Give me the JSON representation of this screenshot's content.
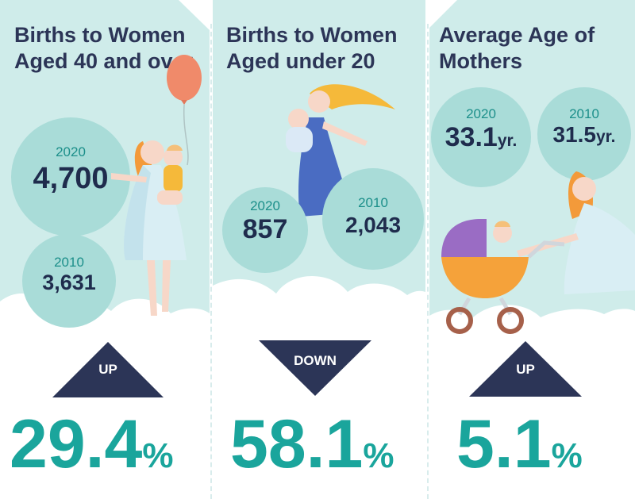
{
  "colors": {
    "panel_bg": "#cfecea",
    "bubble": "#a9dcd8",
    "dark_navy": "#2c3557",
    "teal": "#1aa59c",
    "cloud": "#ffffff"
  },
  "panels": [
    {
      "title_prefix": "Births to Women Aged ",
      "title_bold": "40 and over",
      "title_suffix": "",
      "bubbles": [
        {
          "year": "2020",
          "value": "4,700"
        },
        {
          "year": "2010",
          "value": "3,631"
        }
      ],
      "direction": "UP",
      "change_value": "29.4",
      "change_symbol": "%",
      "illustration": "woman-with-balloon-and-child-icon"
    },
    {
      "title_prefix": "Births to Women Aged ",
      "title_bold": "under 20",
      "title_suffix": "",
      "bubbles": [
        {
          "year": "2020",
          "value": "857"
        },
        {
          "year": "2010",
          "value": "2,043"
        }
      ],
      "direction": "DOWN",
      "change_value": "58.1",
      "change_symbol": "%",
      "illustration": "woman-holding-baby-icon"
    },
    {
      "title_prefix": "",
      "title_bold": "Average Age",
      "title_suffix": " of Mothers",
      "bubbles": [
        {
          "year": "2020",
          "value": "33.1",
          "unit": "yr."
        },
        {
          "year": "2010",
          "value": "31.5",
          "unit": "yr."
        }
      ],
      "direction": "UP",
      "change_value": "5.1",
      "change_symbol": "%",
      "illustration": "woman-pushing-stroller-icon"
    }
  ]
}
